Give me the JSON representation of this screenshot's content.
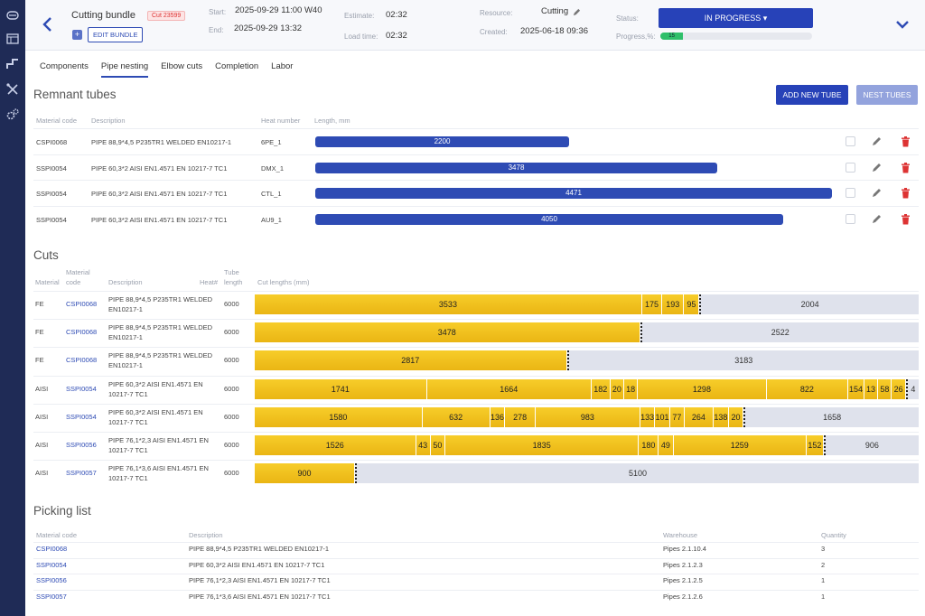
{
  "header": {
    "title": "Cutting bundle",
    "cut_badge": "Cut 23599",
    "edit_label": "EDIT BUNDLE",
    "start_label": "Start:",
    "start_value": "2025-09-29 11:00 W40",
    "end_label": "End:",
    "end_value": "2025-09-29 13:32",
    "estimate_label": "Estimate:",
    "estimate_value": "02:32",
    "load_label": "Load time:",
    "load_value": "02:32",
    "resource_label": "Resource:",
    "resource_value": "Cutting",
    "created_label": "Created:",
    "created_value": "2025-06-18 09:36",
    "status_label": "Status:",
    "status_value": "IN PROGRESS",
    "progress_label": "Progress,%:",
    "progress_value": "15",
    "progress_fraction": 0.15
  },
  "tabs": [
    "Components",
    "Pipe nesting",
    "Elbow cuts",
    "Completion",
    "Labor"
  ],
  "remnant": {
    "title": "Remnant tubes",
    "add_label": "ADD NEW TUBE",
    "nest_label": "NEST TUBES",
    "headers": [
      "Material code",
      "Description",
      "Heat number",
      "Length, mm"
    ],
    "max_length": 4550,
    "rows": [
      {
        "code": "CSPI0068",
        "desc": "PIPE 88,9*4,5 P235TR1 WELDED EN10217-1",
        "heat": "6PE_1",
        "length": 2200
      },
      {
        "code": "SSPI0054",
        "desc": "PIPE 60,3*2 AISI EN1.4571 EN 10217-7 TC1",
        "heat": "DMX_1",
        "length": 3478
      },
      {
        "code": "SSPI0054",
        "desc": "PIPE 60,3*2 AISI EN1.4571 EN 10217-7 TC1",
        "heat": "CTL_1",
        "length": 4471
      },
      {
        "code": "SSPI0054",
        "desc": "PIPE 60,3*2 AISI EN1.4571 EN 10217-7 TC1",
        "heat": "AU9_1",
        "length": 4050
      }
    ]
  },
  "cuts": {
    "title": "Cuts",
    "headers": [
      "Material",
      "Material code",
      "Description",
      "Heat#",
      "Tube length",
      "Cut lengths (mm)"
    ],
    "rows": [
      {
        "material": "FE",
        "code": "CSPI0068",
        "desc": "PIPE 88,9*4,5 P235TR1 WELDED EN10217-1",
        "tube": "6000",
        "cuts": [
          3533,
          175,
          193,
          95
        ],
        "remnant": 2004
      },
      {
        "material": "FE",
        "code": "CSPI0068",
        "desc": "PIPE 88,9*4,5 P235TR1 WELDED EN10217-1",
        "tube": "6000",
        "cuts": [
          3478
        ],
        "remnant": 2522
      },
      {
        "material": "FE",
        "code": "CSPI0068",
        "desc": "PIPE 88,9*4,5 P235TR1 WELDED EN10217-1",
        "tube": "6000",
        "cuts": [
          2817
        ],
        "remnant": 3183
      },
      {
        "material": "AISI",
        "code": "SSPI0054",
        "desc": "PIPE 60,3*2 AISI EN1.4571 EN 10217-7 TC1",
        "tube": "6000",
        "cuts": [
          1741,
          1664,
          182,
          20,
          18,
          1298,
          822,
          154,
          13,
          58,
          26
        ],
        "remnant": 4
      },
      {
        "material": "AISI",
        "code": "SSPI0054",
        "desc": "PIPE 60,3*2 AISI EN1.4571 EN 10217-7 TC1",
        "tube": "6000",
        "cuts": [
          1580,
          632,
          136,
          278,
          983,
          133,
          101,
          77,
          264,
          138,
          20
        ],
        "remnant": 1658
      },
      {
        "material": "AISI",
        "code": "SSPI0056",
        "desc": "PIPE 76,1*2,3 AISI EN1.4571 EN 10217-7 TC1",
        "tube": "6000",
        "cuts": [
          1526,
          43,
          50,
          1835,
          180,
          49,
          1259,
          152
        ],
        "remnant": 906
      },
      {
        "material": "AISI",
        "code": "SSPI0057",
        "desc": "PIPE 76,1*3,6 AISI EN1.4571 EN 10217-7 TC1",
        "tube": "6000",
        "cuts": [
          900
        ],
        "remnant": 5100
      }
    ]
  },
  "picking": {
    "title": "Picking list",
    "headers": [
      "Material code",
      "Description",
      "Warehouse",
      "Quantity"
    ],
    "rows": [
      {
        "code": "CSPI0068",
        "desc": "PIPE 88,9*4,5 P235TR1 WELDED EN10217-1",
        "warehouse": "Pipes 2.1.10.4",
        "qty": "3"
      },
      {
        "code": "SSPI0054",
        "desc": "PIPE 60,3*2 AISI EN1.4571 EN 10217-7 TC1",
        "warehouse": "Pipes 2.1.2.3",
        "qty": "2"
      },
      {
        "code": "SSPI0056",
        "desc": "PIPE 76,1*2,3 AISI EN1.4571 EN 10217-7 TC1",
        "warehouse": "Pipes 2.1.2.5",
        "qty": "1"
      },
      {
        "code": "SSPI0057",
        "desc": "PIPE 76,1*3,6 AISI EN1.4571 EN 10217-7 TC1",
        "warehouse": "Pipes 2.1.2.6",
        "qty": "1"
      }
    ]
  }
}
